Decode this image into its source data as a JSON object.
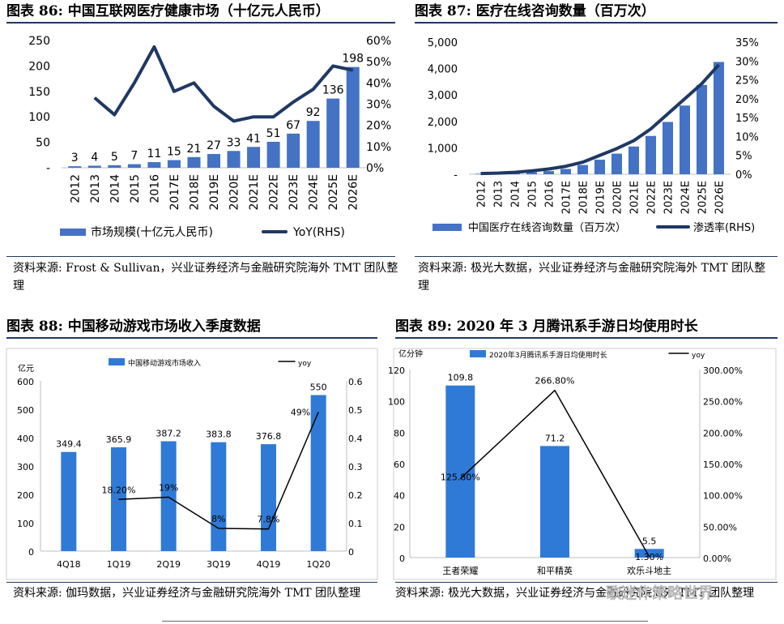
{
  "panels": {
    "p86": {
      "title": "图表 86: 中国互联网医疗健康市场（十亿元人民币）",
      "source": "资料来源: Frost & Sullivan，兴业证券经济与金融研究院海外 TMT 团队整理"
    },
    "p87": {
      "title": "图表 87: 医疗在线咨询数量（百万次）",
      "source": "资料来源: 极光大数据，兴业证券经济与金融研究院海外 TMT 团队整理"
    },
    "p88": {
      "title": "图表 88: 中国移动游戏市场收入季度数据",
      "source": "资料来源: 伽玛数据，兴业证券经济与金融研究院海外 TMT 团队整理"
    },
    "p89": {
      "title": "图表 89: 2020 年 3 月腾讯系手游日均使用时长",
      "source": "资料来源: 极光大数据，兴业证券经济与金融研究院海外 TMT 团队整理"
    }
  },
  "watermark": "歌迷作策略世界",
  "chart_data": [
    {
      "type": "bar",
      "categories": [
        "2012",
        "2013",
        "2014",
        "2015",
        "2016",
        "2017E",
        "2018E",
        "2019E",
        "2020E",
        "2021E",
        "2022E",
        "2023E",
        "2024E",
        "2025E",
        "2026E"
      ],
      "series": [
        {
          "name": "市场规模(十亿元人民币)",
          "type": "bar",
          "values": [
            3,
            4,
            5,
            7,
            11,
            15,
            21,
            27,
            33,
            41,
            51,
            67,
            92,
            136,
            198
          ]
        },
        {
          "name": "YoY(RHS)",
          "type": "line",
          "axis": "right",
          "values": [
            null,
            0.33,
            0.25,
            0.4,
            0.57,
            0.36,
            0.4,
            0.29,
            0.22,
            0.24,
            0.24,
            0.31,
            0.37,
            0.48,
            0.46
          ]
        }
      ],
      "yticks": [
        "250",
        "200",
        "150",
        "100",
        "50",
        "-"
      ],
      "y2ticks": [
        "60%",
        "50%",
        "40%",
        "30%",
        "20%",
        "10%",
        "0%"
      ],
      "ylim": [
        0,
        250
      ],
      "y2lim": [
        0,
        0.6
      ],
      "colors": {
        "bar": "#4472c4",
        "line": "#1f3864"
      }
    },
    {
      "type": "bar",
      "categories": [
        "2012",
        "2013",
        "2014",
        "2015",
        "2016",
        "2017E",
        "2018E",
        "2019E",
        "2020E",
        "2021E",
        "2022E",
        "2023E",
        "2024E",
        "2025E",
        "2026E"
      ],
      "series": [
        {
          "name": "中国医疗在线咨询数量（百万次）",
          "type": "bar",
          "values": [
            20,
            30,
            50,
            80,
            120,
            200,
            350,
            550,
            780,
            1050,
            1450,
            1980,
            2600,
            3380,
            4250
          ]
        },
        {
          "name": "渗透率(RHS)",
          "type": "line",
          "axis": "right",
          "values": [
            0.002,
            0.003,
            0.005,
            0.009,
            0.014,
            0.021,
            0.032,
            0.05,
            0.068,
            0.089,
            0.12,
            0.16,
            0.2,
            0.24,
            0.29
          ]
        }
      ],
      "yticks": [
        "5,000",
        "4,000",
        "3,000",
        "2,000",
        "1,000",
        "-"
      ],
      "y2ticks": [
        "35%",
        "30%",
        "25%",
        "20%",
        "15%",
        "10%",
        "5%",
        "0%"
      ],
      "ylim": [
        0,
        5000
      ],
      "y2lim": [
        0,
        0.35
      ],
      "colors": {
        "bar": "#4472c4",
        "line": "#1f3864"
      }
    },
    {
      "type": "bar",
      "ylabel": "亿元",
      "categories": [
        "4Q18",
        "1Q19",
        "2Q19",
        "3Q19",
        "4Q19",
        "1Q20"
      ],
      "series": [
        {
          "name": "中国移动游戏市场收入",
          "type": "bar",
          "values": [
            349.4,
            365.9,
            387.2,
            383.8,
            376.8,
            550
          ],
          "labels": [
            "349.4",
            "365.9",
            "387.2",
            "383.8",
            "376.8",
            "550"
          ]
        },
        {
          "name": "yoy",
          "type": "line",
          "axis": "right",
          "values": [
            null,
            0.182,
            0.19,
            0.08,
            0.078,
            0.49
          ],
          "labels": [
            "",
            "18.20%",
            "19%",
            "8%",
            "7.8%",
            "49%"
          ]
        }
      ],
      "yticks": [
        "600",
        "500",
        "400",
        "300",
        "200",
        "100",
        "0"
      ],
      "y2ticks": [
        "0.6",
        "0.5",
        "0.4",
        "0.3",
        "0.2",
        "0.1",
        "0"
      ],
      "ylim": [
        0,
        600
      ],
      "y2lim": [
        0,
        0.6
      ],
      "colors": {
        "bar": "#2f7ad6",
        "line": "#000000"
      }
    },
    {
      "type": "bar",
      "ylabel": "亿分钟",
      "categories": [
        "王者荣耀",
        "和平精英",
        "欢乐斗地主"
      ],
      "series": [
        {
          "name": "2020年3月腾讯系手游日均使用时长",
          "type": "bar",
          "values": [
            109.8,
            71.2,
            5.5
          ],
          "labels": [
            "109.8",
            "71.2",
            "5.5"
          ]
        },
        {
          "name": "yoy",
          "type": "line",
          "axis": "right",
          "values": [
            1.258,
            2.668,
            0.013
          ],
          "labels": [
            "125.80%",
            "266.80%",
            "1.30%"
          ]
        }
      ],
      "yticks": [
        "120",
        "100",
        "80",
        "60",
        "40",
        "20",
        "0"
      ],
      "y2ticks": [
        "300.00%",
        "250.00%",
        "200.00%",
        "150.00%",
        "100.00%",
        "50.00%",
        "0.00%"
      ],
      "ylim": [
        0,
        120
      ],
      "y2lim": [
        0,
        3.0
      ],
      "colors": {
        "bar": "#2f7ad6",
        "line": "#000000"
      }
    }
  ]
}
